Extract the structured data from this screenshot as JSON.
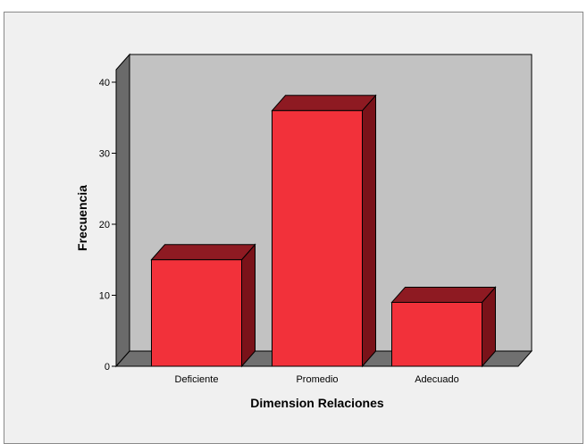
{
  "chart_data": {
    "type": "bar",
    "categories": [
      "Deficiente",
      "Promedio",
      "Adecuado"
    ],
    "values": [
      15,
      36,
      9
    ],
    "xlabel": "Dimension Relaciones",
    "ylabel": "Frecuencia",
    "ylim": [
      0,
      40
    ],
    "yticks": [
      0,
      10,
      20,
      30,
      40
    ],
    "grid": false,
    "style": "3d",
    "colors": {
      "bar_front": "#f2313a",
      "bar_top": "#8e1a22",
      "bar_side": "#7a1219",
      "wall": "#c2c2c2",
      "floor": "#707070",
      "left_wall": "#6a6a6a",
      "frame_bg": "#f0f0f0"
    }
  }
}
